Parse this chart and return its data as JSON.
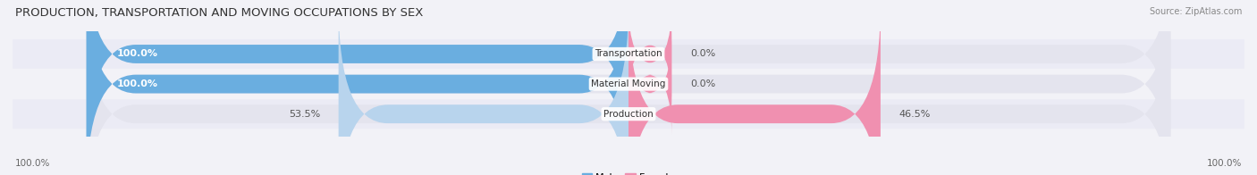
{
  "title": "PRODUCTION, TRANSPORTATION AND MOVING OCCUPATIONS BY SEX",
  "source": "Source: ZipAtlas.com",
  "categories": [
    "Transportation",
    "Material Moving",
    "Production"
  ],
  "male_values": [
    100.0,
    100.0,
    53.5
  ],
  "female_values": [
    0.0,
    0.0,
    46.5
  ],
  "male_color_dark": "#6aaee0",
  "male_color_light": "#b8d4ed",
  "female_color_dark": "#f090b0",
  "female_color_light": "#f090b0",
  "bg_color": "#f2f2f7",
  "bar_bg_color": "#e4e4ee",
  "row_bg_even": "#ebebf5",
  "row_bg_odd": "#f2f2f7",
  "label_color_white": "#ffffff",
  "label_color_dark": "#555555",
  "title_fontsize": 9.5,
  "source_fontsize": 7,
  "tick_fontsize": 7.5,
  "label_fontsize": 8,
  "category_fontsize": 7.5,
  "axis_label_left": "100.0%",
  "axis_label_right": "100.0%"
}
